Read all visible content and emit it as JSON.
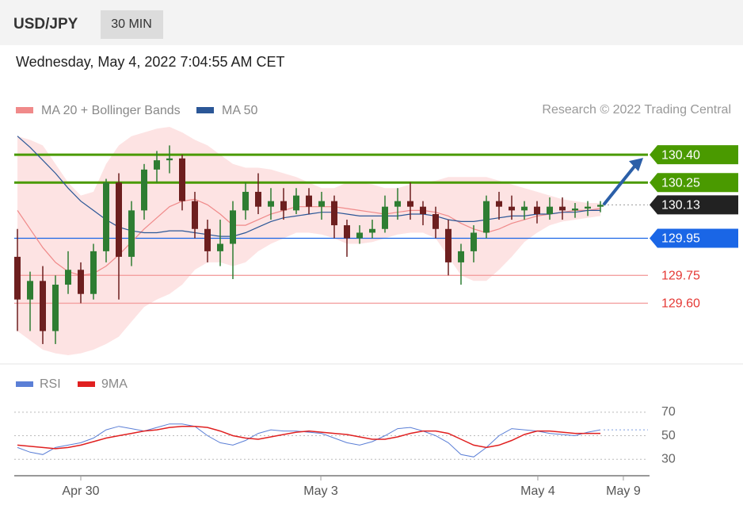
{
  "header": {
    "symbol": "USD/JPY",
    "interval": "30 MIN"
  },
  "chart_data": [
    {
      "type": "candlestick",
      "subtitle": "Wednesday, May 4, 2022 7:04:55 AM CET",
      "source": "Research © 2022 Trading Central",
      "up_color": "#2e7d32",
      "down_color": "#6d1f1f",
      "open": [
        129.85,
        129.62,
        129.72,
        129.45,
        129.7,
        129.78,
        129.65,
        129.88,
        130.25,
        129.85,
        130.1,
        130.32,
        130.37,
        130.38,
        130.15,
        130.0,
        129.88,
        129.92,
        130.1,
        130.2,
        130.12,
        130.15,
        130.1,
        130.18,
        130.12,
        130.15,
        130.02,
        129.95,
        129.98,
        130.0,
        130.12,
        130.15,
        130.12,
        130.08,
        130.0,
        129.82,
        129.88,
        129.98,
        130.15,
        130.12,
        130.1,
        130.12,
        130.08,
        130.12,
        130.1,
        130.11,
        130.12
      ],
      "high": [
        130.0,
        129.77,
        129.8,
        129.75,
        129.88,
        129.82,
        129.92,
        130.27,
        130.3,
        130.15,
        130.35,
        130.42,
        130.45,
        130.4,
        130.2,
        130.05,
        130.05,
        130.15,
        130.25,
        130.3,
        130.22,
        130.22,
        130.22,
        130.22,
        130.2,
        130.18,
        130.05,
        130.02,
        130.05,
        130.18,
        130.22,
        130.25,
        130.15,
        130.12,
        130.05,
        129.92,
        130.02,
        130.18,
        130.2,
        130.18,
        130.15,
        130.15,
        130.17,
        130.17,
        130.14,
        130.15,
        130.15
      ],
      "low": [
        129.45,
        129.45,
        129.38,
        129.38,
        129.65,
        129.6,
        129.62,
        129.82,
        129.62,
        129.8,
        130.05,
        130.25,
        130.3,
        130.1,
        129.95,
        129.82,
        129.8,
        129.73,
        130.05,
        130.08,
        130.05,
        130.05,
        130.08,
        130.08,
        130.05,
        129.95,
        129.85,
        129.92,
        129.95,
        129.98,
        130.05,
        130.05,
        130.02,
        129.95,
        129.75,
        129.7,
        129.82,
        129.95,
        130.05,
        130.05,
        130.05,
        130.03,
        130.05,
        130.05,
        130.06,
        130.07,
        130.09
      ],
      "close": [
        129.62,
        129.72,
        129.45,
        129.7,
        129.78,
        129.65,
        129.88,
        130.25,
        129.85,
        130.1,
        130.32,
        130.37,
        130.38,
        130.15,
        130.0,
        129.88,
        129.92,
        130.1,
        130.2,
        130.12,
        130.15,
        130.1,
        130.18,
        130.12,
        130.15,
        130.02,
        129.95,
        129.98,
        130.0,
        130.12,
        130.15,
        130.12,
        130.08,
        130.0,
        129.82,
        129.88,
        129.98,
        130.15,
        130.12,
        130.1,
        130.12,
        130.08,
        130.12,
        130.1,
        130.11,
        130.12,
        130.13
      ],
      "series": [
        {
          "name": "MA 20 + Bollinger Bands",
          "color": "#f08a8a",
          "band_color": "#fde3e3",
          "values": [
            130.1,
            130.0,
            129.9,
            129.82,
            129.77,
            129.75,
            129.76,
            129.8,
            129.86,
            129.93,
            130.0,
            130.06,
            130.12,
            130.15,
            130.16,
            130.13,
            130.08,
            130.02,
            130.02,
            130.05,
            130.08,
            130.1,
            130.12,
            130.12,
            130.12,
            130.12,
            130.11,
            130.1,
            130.09,
            130.08,
            130.09,
            130.1,
            130.1,
            130.09,
            130.07,
            130.03,
            130.0,
            129.98,
            130.0,
            130.03,
            130.05,
            130.07,
            130.08,
            130.09,
            130.1,
            130.1,
            130.11
          ],
          "upper": [
            130.5,
            130.48,
            130.45,
            130.35,
            130.25,
            130.18,
            130.2,
            130.35,
            130.45,
            130.5,
            130.52,
            130.54,
            130.55,
            130.52,
            130.48,
            130.45,
            130.4,
            130.35,
            130.33,
            130.33,
            130.32,
            130.3,
            130.28,
            130.25,
            130.22,
            130.22,
            130.25,
            130.25,
            130.24,
            130.22,
            130.22,
            130.24,
            130.25,
            130.26,
            130.28,
            130.28,
            130.28,
            130.28,
            130.26,
            130.24,
            130.22,
            130.2,
            130.18,
            130.16,
            130.15,
            130.14,
            130.14
          ],
          "lower": [
            129.45,
            129.4,
            129.35,
            129.33,
            129.32,
            129.33,
            129.35,
            129.38,
            129.42,
            129.5,
            129.58,
            129.62,
            129.65,
            129.7,
            129.78,
            129.82,
            129.82,
            129.8,
            129.82,
            129.88,
            129.92,
            129.95,
            129.98,
            129.98,
            129.97,
            129.95,
            129.92,
            129.92,
            129.93,
            129.95,
            129.97,
            129.98,
            129.98,
            129.95,
            129.85,
            129.75,
            129.72,
            129.72,
            129.78,
            129.85,
            129.93,
            129.98,
            130.02,
            130.04,
            130.05,
            130.06,
            130.07
          ]
        },
        {
          "name": "MA 50",
          "color": "#2b5797",
          "values": [
            130.5,
            130.44,
            130.37,
            130.3,
            130.22,
            130.15,
            130.1,
            130.05,
            130.01,
            129.99,
            129.98,
            129.98,
            129.99,
            129.99,
            129.98,
            129.97,
            129.96,
            129.96,
            129.98,
            130.01,
            130.04,
            130.06,
            130.07,
            130.08,
            130.09,
            130.09,
            130.08,
            130.07,
            130.07,
            130.07,
            130.07,
            130.08,
            130.08,
            130.07,
            130.05,
            130.04,
            130.04,
            130.05,
            130.06,
            130.07,
            130.07,
            130.08,
            130.08,
            130.09,
            130.09,
            130.1,
            130.1
          ]
        }
      ],
      "levels": [
        {
          "value": 130.4,
          "label": "130.40",
          "color": "#4a9a00",
          "boxed": true,
          "line": "thick"
        },
        {
          "value": 130.25,
          "label": "130.25",
          "color": "#4a9a00",
          "boxed": true,
          "line": "thick"
        },
        {
          "value": 130.13,
          "label": "130.13",
          "color": "#222222",
          "boxed": true,
          "line": "dotted"
        },
        {
          "value": 129.95,
          "label": "129.95",
          "color": "#1a66e6",
          "boxed": true,
          "line": "thin"
        },
        {
          "value": 129.75,
          "label": "129.75",
          "color": "#e53935",
          "boxed": false,
          "line": "thin"
        },
        {
          "value": 129.6,
          "label": "129.60",
          "color": "#e53935",
          "boxed": false,
          "line": "thin"
        }
      ],
      "arrow_color": "#2b5fa8",
      "xlim": [
        -0.25,
        49.75
      ],
      "xticks": [
        {
          "value": 5,
          "label": "Apr 30"
        },
        {
          "value": 23.94,
          "label": "May 3"
        },
        {
          "value": 41.06,
          "label": "May 4"
        },
        {
          "value": 47.81,
          "label": "May 9"
        }
      ],
      "ylim": [
        129.29,
        130.55
      ]
    },
    {
      "type": "line",
      "series": [
        {
          "name": "RSI",
          "color": "#5b7fd6",
          "values": [
            40,
            36,
            34,
            40,
            42,
            44,
            48,
            55,
            58,
            56,
            54,
            57,
            60,
            60,
            58,
            50,
            44,
            42,
            46,
            52,
            55,
            54,
            54,
            53,
            52,
            48,
            44,
            42,
            45,
            50,
            56,
            57,
            54,
            50,
            44,
            34,
            32,
            40,
            50,
            56,
            55,
            54,
            52,
            51,
            50,
            53,
            55
          ]
        },
        {
          "name": "9MA",
          "color": "#e02020",
          "values": [
            42,
            41,
            40,
            39,
            40,
            42,
            45,
            48,
            50,
            52,
            54,
            55,
            57,
            58,
            58,
            57,
            54,
            50,
            48,
            47,
            49,
            51,
            53,
            54,
            53,
            52,
            51,
            49,
            47,
            47,
            49,
            52,
            54,
            54,
            52,
            47,
            42,
            40,
            42,
            46,
            51,
            54,
            54,
            53,
            52,
            52,
            52
          ]
        }
      ],
      "xlim": [
        -0.25,
        49.75
      ],
      "ylim": [
        16,
        80
      ],
      "yticks": [
        30,
        50,
        70
      ]
    }
  ]
}
